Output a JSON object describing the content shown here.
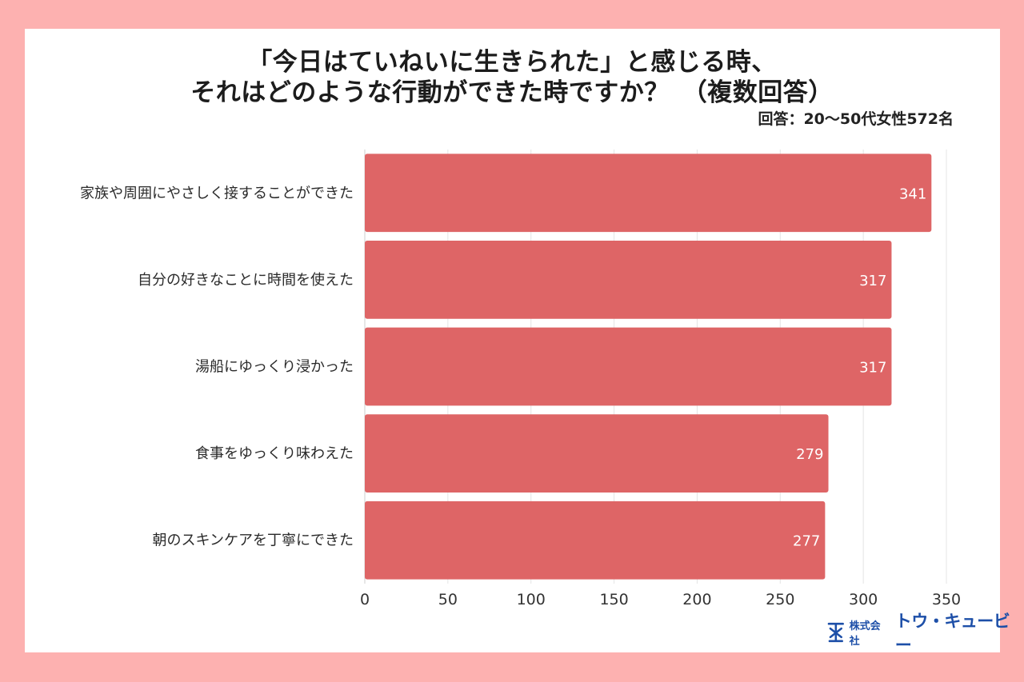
{
  "header": {
    "title_line1": "「今日はていねいに生きられた」と感じる時、",
    "title_line2": "それはどのような行動ができた時ですか？　（複数回答）",
    "respondents": "回答：20〜50代女性572名"
  },
  "logo": {
    "company_prefix": "株式会社",
    "company_name": "トウ・キュービー"
  },
  "colors": {
    "background": "#fdb1b0",
    "bar": "#de6566"
  },
  "chart_data": {
    "type": "bar",
    "orientation": "horizontal",
    "categories": [
      "家族や周囲にやさしく接することができた",
      "自分の好きなことに時間を使えた",
      "湯船にゆっくり浸かった",
      "食事をゆっくり味わえた",
      "朝のスキンケアを丁寧にできた"
    ],
    "values": [
      341,
      317,
      317,
      279,
      277
    ],
    "xlim": [
      0,
      350
    ],
    "xticks": [
      0,
      50,
      100,
      150,
      200,
      250,
      300,
      350
    ],
    "grid": true,
    "data_labels": true
  }
}
